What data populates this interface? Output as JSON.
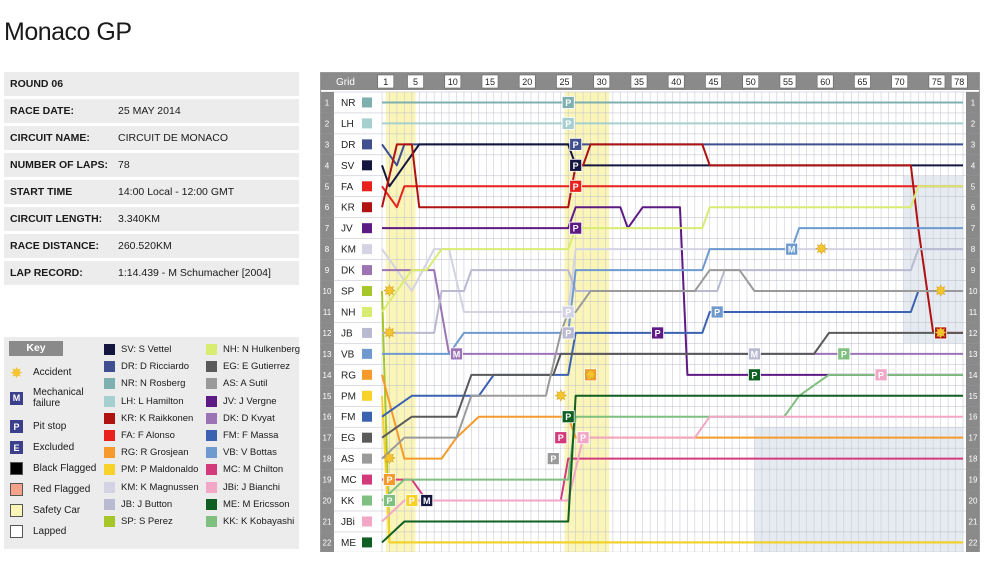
{
  "title": "Monaco GP",
  "info": [
    {
      "label": "ROUND 06",
      "value": ""
    },
    {
      "label": "RACE DATE:",
      "value": "25 MAY 2014"
    },
    {
      "label": "CIRCUIT NAME:",
      "value": "CIRCUIT DE MONACO"
    },
    {
      "label": "NUMBER OF LAPS:",
      "value": "78"
    },
    {
      "label": "START TIME",
      "value": "14:00 Local - 12:00 GMT"
    },
    {
      "label": "CIRCUIT LENGTH:",
      "value": "3.340KM"
    },
    {
      "label": "RACE DISTANCE:",
      "value": "260.520KM"
    },
    {
      "label": "LAP RECORD:",
      "value": "1:14.439 - M Schumacher [2004]"
    }
  ],
  "key": {
    "heading": "Key",
    "symbols": [
      {
        "name": "accident",
        "label": "Accident",
        "symbol": "✸",
        "color": "#f4c430"
      },
      {
        "name": "mechanical",
        "label": "Mechanical\nfailure",
        "symbol": "M",
        "color": "#3b3f8c"
      },
      {
        "name": "pitstop",
        "label": "Pit stop",
        "symbol": "P",
        "color": "#3b3f8c"
      },
      {
        "name": "excluded",
        "label": "Excluded",
        "symbol": "E",
        "color": "#3b3f8c"
      },
      {
        "name": "black-flag",
        "label": "Black Flagged",
        "symbol": "",
        "color": "#000000"
      },
      {
        "name": "red-flag",
        "label": "Red Flagged",
        "symbol": "",
        "color": "#f4a38a"
      },
      {
        "name": "safety-car",
        "label": "Safety Car",
        "symbol": "",
        "color": "#fbf6b8"
      },
      {
        "name": "lapped",
        "label": "Lapped",
        "symbol": "",
        "color": "#ffffff"
      }
    ],
    "drivers": [
      {
        "code": "SV",
        "name": "SV: S Vettel",
        "color": "#14163f"
      },
      {
        "code": "DR",
        "name": "DR: D Ricciardo",
        "color": "#3f4f8f"
      },
      {
        "code": "NR",
        "name": "NR: N Rosberg",
        "color": "#7fb0b0"
      },
      {
        "code": "LH",
        "name": "LH: L Hamilton",
        "color": "#a6d0d0"
      },
      {
        "code": "KR",
        "name": "KR: K Raikkonen",
        "color": "#b01212"
      },
      {
        "code": "FA",
        "name": "FA: F Alonso",
        "color": "#e8211d"
      },
      {
        "code": "RG",
        "name": "RG: R Grosjean",
        "color": "#f59a2b"
      },
      {
        "code": "PM",
        "name": "PM: P Maldonaldo",
        "color": "#f8d22a"
      },
      {
        "code": "KM",
        "name": "KM: K Magnussen",
        "color": "#d3d3e3"
      },
      {
        "code": "JB",
        "name": "JB: J Button",
        "color": "#b9b9d2"
      },
      {
        "code": "SP",
        "name": "SP: S Perez",
        "color": "#a7c62a"
      },
      {
        "code": "NH",
        "name": "NH: N Hulkenberg",
        "color": "#d9ec72"
      },
      {
        "code": "EG",
        "name": "EG: E Gutierrez",
        "color": "#5a5a5a"
      },
      {
        "code": "AS",
        "name": "AS: A Sutil",
        "color": "#9a9a9a"
      },
      {
        "code": "JV",
        "name": "JV: J Vergne",
        "color": "#5e1a84"
      },
      {
        "code": "DK",
        "name": "DK: D Kvyat",
        "color": "#9c74b6"
      },
      {
        "code": "FM",
        "name": "FM: F Massa",
        "color": "#3b62b0"
      },
      {
        "code": "VB",
        "name": "VB: V Bottas",
        "color": "#6f9ad0"
      },
      {
        "code": "MC",
        "name": "MC: M Chilton",
        "color": "#d33a7c"
      },
      {
        "code": "JBi",
        "name": "JBi: J Bianchi",
        "color": "#f2a7c6"
      },
      {
        "code": "ME",
        "name": "ME: M Ericsson",
        "color": "#0f5f22"
      },
      {
        "code": "KK",
        "name": "KK: K Kobayashi",
        "color": "#7fbf7f"
      }
    ]
  },
  "chart_data": {
    "type": "line",
    "grid_label": "Grid",
    "laps": 78,
    "lap_ticks": [
      1,
      5,
      10,
      15,
      20,
      25,
      30,
      35,
      40,
      45,
      50,
      55,
      60,
      65,
      70,
      75,
      78
    ],
    "positions": [
      1,
      2,
      3,
      4,
      5,
      6,
      7,
      8,
      9,
      10,
      11,
      12,
      13,
      14,
      15,
      16,
      17,
      18,
      19,
      20,
      21,
      22
    ],
    "grid_order": [
      "NR",
      "LH",
      "DR",
      "SV",
      "FA",
      "KR",
      "JV",
      "KM",
      "DK",
      "SP",
      "NH",
      "JB",
      "VB",
      "RG",
      "PM",
      "FM",
      "EG",
      "AS",
      "MC",
      "KK",
      "JBi",
      "ME"
    ],
    "safety_car_laps": [
      [
        1,
        4
      ],
      [
        25,
        30
      ]
    ],
    "series": [
      {
        "name": "NR",
        "points": [
          [
            0,
            1
          ],
          [
            78,
            1
          ]
        ]
      },
      {
        "name": "LH",
        "points": [
          [
            0,
            2
          ],
          [
            78,
            2
          ]
        ]
      },
      {
        "name": "DR",
        "points": [
          [
            0,
            3
          ],
          [
            2,
            4
          ],
          [
            3,
            3
          ],
          [
            78,
            3
          ]
        ]
      },
      {
        "name": "SV",
        "points": [
          [
            0,
            4
          ],
          [
            1,
            5
          ],
          [
            3,
            4
          ],
          [
            5,
            3
          ],
          [
            25,
            3
          ],
          [
            26,
            4
          ],
          [
            78,
            4
          ]
        ]
      },
      {
        "name": "FA",
        "points": [
          [
            0,
            5
          ],
          [
            2,
            6
          ],
          [
            3,
            5
          ],
          [
            78,
            5
          ]
        ]
      },
      {
        "name": "KR",
        "points": [
          [
            0,
            6
          ],
          [
            2,
            3
          ],
          [
            4,
            3
          ],
          [
            5,
            6
          ],
          [
            25,
            6
          ],
          [
            26,
            4
          ],
          [
            27,
            4
          ],
          [
            28,
            3
          ],
          [
            43,
            3
          ],
          [
            44,
            4
          ],
          [
            71,
            4
          ],
          [
            72,
            7
          ],
          [
            74,
            12
          ],
          [
            78,
            12
          ]
        ]
      },
      {
        "name": "JV",
        "points": [
          [
            0,
            7
          ],
          [
            25,
            7
          ],
          [
            26,
            6
          ],
          [
            32,
            6
          ],
          [
            33,
            7
          ],
          [
            35,
            6
          ],
          [
            40,
            6
          ],
          [
            41,
            14
          ],
          [
            78,
            14
          ]
        ]
      },
      {
        "name": "KM",
        "points": [
          [
            0,
            8
          ],
          [
            4,
            10
          ],
          [
            7,
            8
          ],
          [
            9,
            8
          ],
          [
            11,
            11
          ],
          [
            25,
            11
          ],
          [
            26,
            8
          ],
          [
            78,
            8
          ]
        ]
      },
      {
        "name": "DK",
        "points": [
          [
            0,
            9
          ],
          [
            7,
            9
          ],
          [
            9,
            13
          ],
          [
            78,
            13
          ]
        ]
      },
      {
        "name": "SP",
        "points": [
          [
            0,
            10
          ],
          [
            1,
            22
          ],
          [
            78,
            22
          ]
        ]
      },
      {
        "name": "NH",
        "points": [
          [
            0,
            11
          ],
          [
            4,
            9
          ],
          [
            6,
            9
          ],
          [
            8,
            8
          ],
          [
            25,
            8
          ],
          [
            26,
            7
          ],
          [
            43,
            7
          ],
          [
            44,
            6
          ],
          [
            71,
            6
          ],
          [
            72,
            5
          ],
          [
            78,
            5
          ]
        ]
      },
      {
        "name": "JB",
        "points": [
          [
            0,
            12
          ],
          [
            7,
            12
          ],
          [
            8,
            10
          ],
          [
            11,
            10
          ],
          [
            12,
            9
          ],
          [
            25,
            9
          ],
          [
            26,
            10
          ],
          [
            45,
            10
          ],
          [
            46,
            9
          ],
          [
            71,
            9
          ],
          [
            72,
            8
          ],
          [
            78,
            8
          ]
        ]
      },
      {
        "name": "VB",
        "points": [
          [
            0,
            13
          ],
          [
            9,
            13
          ],
          [
            11,
            12
          ],
          [
            25,
            12
          ],
          [
            26,
            9
          ],
          [
            43,
            9
          ],
          [
            44,
            8
          ],
          [
            55,
            8
          ],
          [
            56,
            7
          ],
          [
            78,
            7
          ]
        ]
      },
      {
        "name": "RG",
        "points": [
          [
            0,
            14
          ],
          [
            3,
            18
          ],
          [
            8,
            18
          ],
          [
            10,
            17
          ],
          [
            13,
            16
          ],
          [
            25,
            16
          ],
          [
            26,
            17
          ],
          [
            78,
            17
          ]
        ]
      },
      {
        "name": "PM",
        "points": [
          [
            0,
            15
          ],
          [
            1,
            22
          ],
          [
            78,
            22
          ]
        ]
      },
      {
        "name": "FM",
        "points": [
          [
            0,
            16
          ],
          [
            4,
            15
          ],
          [
            13,
            15
          ],
          [
            15,
            14
          ],
          [
            25,
            14
          ],
          [
            26,
            12
          ],
          [
            43,
            12
          ],
          [
            44,
            11
          ],
          [
            71,
            11
          ],
          [
            72,
            10
          ],
          [
            78,
            10
          ]
        ]
      },
      {
        "name": "EG",
        "points": [
          [
            0,
            17
          ],
          [
            4,
            16
          ],
          [
            10,
            16
          ],
          [
            12,
            14
          ],
          [
            23,
            14
          ],
          [
            24,
            13
          ],
          [
            58,
            13
          ],
          [
            60,
            12
          ],
          [
            78,
            12
          ]
        ]
      },
      {
        "name": "AS",
        "points": [
          [
            0,
            18
          ],
          [
            3,
            17
          ],
          [
            10,
            17
          ],
          [
            12,
            15
          ],
          [
            22,
            15
          ],
          [
            24,
            12
          ],
          [
            25,
            11
          ],
          [
            26,
            11
          ],
          [
            28,
            10
          ],
          [
            42,
            10
          ],
          [
            44,
            9
          ],
          [
            48,
            9
          ],
          [
            50,
            10
          ],
          [
            78,
            10
          ]
        ]
      },
      {
        "name": "MC",
        "points": [
          [
            0,
            19
          ],
          [
            4,
            19
          ],
          [
            6,
            20
          ],
          [
            24,
            20
          ],
          [
            25,
            18
          ],
          [
            78,
            18
          ]
        ]
      },
      {
        "name": "KK",
        "points": [
          [
            0,
            20
          ],
          [
            3,
            19
          ],
          [
            25,
            19
          ],
          [
            26,
            16
          ],
          [
            54,
            16
          ],
          [
            56,
            15
          ],
          [
            60,
            14
          ],
          [
            78,
            14
          ]
        ]
      },
      {
        "name": "JBi",
        "points": [
          [
            0,
            21
          ],
          [
            3,
            20
          ],
          [
            25,
            20
          ],
          [
            27,
            17
          ],
          [
            42,
            17
          ],
          [
            44,
            16
          ],
          [
            78,
            16
          ]
        ]
      },
      {
        "name": "ME",
        "points": [
          [
            0,
            22
          ],
          [
            3,
            21
          ],
          [
            25,
            21
          ],
          [
            26,
            15
          ],
          [
            78,
            15
          ]
        ]
      }
    ],
    "events": [
      {
        "driver": "NR",
        "type": "P",
        "lap": 25,
        "pos": 1
      },
      {
        "driver": "LH",
        "type": "P",
        "lap": 25,
        "pos": 2
      },
      {
        "driver": "DR",
        "type": "P",
        "lap": 26,
        "pos": 3
      },
      {
        "driver": "SV",
        "type": "P",
        "lap": 26,
        "pos": 4
      },
      {
        "driver": "FA",
        "type": "P",
        "lap": 26,
        "pos": 5
      },
      {
        "driver": "JV",
        "type": "P",
        "lap": 26,
        "pos": 7
      },
      {
        "driver": "KM",
        "type": "P",
        "lap": 25,
        "pos": 11
      },
      {
        "driver": "JB",
        "type": "P",
        "lap": 25,
        "pos": 12
      },
      {
        "driver": "RG",
        "type": "P",
        "lap": 28,
        "pos": 14
      },
      {
        "driver": "JV",
        "type": "P",
        "lap": 37,
        "pos": 12
      },
      {
        "driver": "VB",
        "type": "P",
        "lap": 45,
        "pos": 11
      },
      {
        "driver": "KR",
        "type": "P",
        "lap": 75,
        "pos": 12
      },
      {
        "driver": "ME",
        "type": "P",
        "lap": 50,
        "pos": 14
      },
      {
        "driver": "KK",
        "type": "P",
        "lap": 62,
        "pos": 13
      },
      {
        "driver": "JBi",
        "type": "P",
        "lap": 67,
        "pos": 14
      },
      {
        "driver": "ME",
        "type": "P",
        "lap": 25,
        "pos": 16
      },
      {
        "driver": "MC",
        "type": "P",
        "lap": 24,
        "pos": 17
      },
      {
        "driver": "JBi",
        "type": "P",
        "lap": 27,
        "pos": 17
      },
      {
        "driver": "AS",
        "type": "P",
        "lap": 23,
        "pos": 18
      },
      {
        "driver": "RG",
        "type": "P",
        "lap": 1,
        "pos": 19
      },
      {
        "driver": "KK",
        "type": "P",
        "lap": 1,
        "pos": 20
      },
      {
        "driver": "PM",
        "type": "P",
        "lap": 4,
        "pos": 20
      },
      {
        "driver": "VB",
        "type": "M",
        "lap": 55,
        "pos": 8
      },
      {
        "driver": "DK",
        "type": "M",
        "lap": 10,
        "pos": 13
      },
      {
        "driver": "SV",
        "type": "M",
        "lap": 6,
        "pos": 20
      },
      {
        "driver": "JB",
        "type": "M",
        "lap": 50,
        "pos": 13
      },
      {
        "driver": "KM",
        "type": "A",
        "lap": 59,
        "pos": 8
      },
      {
        "driver": "SP",
        "type": "A",
        "lap": 1,
        "pos": 10
      },
      {
        "driver": "JB",
        "type": "A",
        "lap": 1,
        "pos": 12
      },
      {
        "driver": "AS",
        "type": "A",
        "lap": 24,
        "pos": 15
      },
      {
        "driver": "RG",
        "type": "A",
        "lap": 28,
        "pos": 14
      },
      {
        "driver": "NH",
        "type": "A",
        "lap": 75,
        "pos": 10
      },
      {
        "driver": "KR",
        "type": "A",
        "lap": 75,
        "pos": 12
      },
      {
        "driver": "AS",
        "type": "A",
        "lap": 1,
        "pos": 18
      }
    ]
  }
}
